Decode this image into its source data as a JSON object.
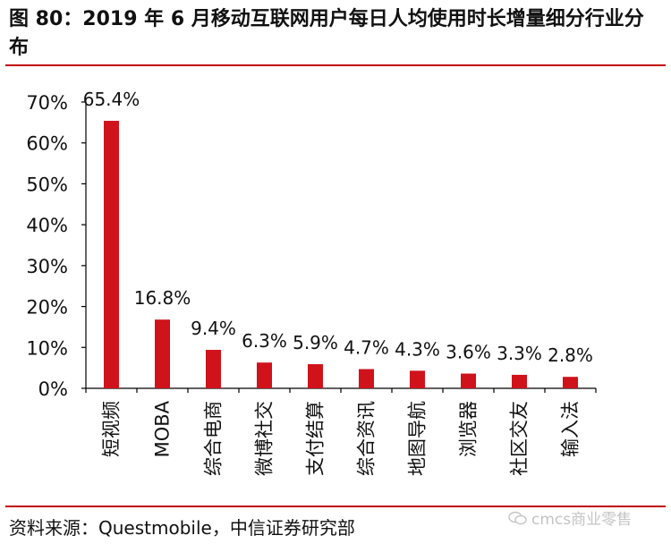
{
  "header": {
    "title": "图 80：2019 年 6 月移动互联网用户每日人均使用时长增量细分行业分布"
  },
  "footer": {
    "source": "资料来源：Questmobile，中信证券研究部",
    "watermark": "cmcs商业零售"
  },
  "colors": {
    "bar": "#d0121b",
    "rule": "#c00000"
  },
  "chart_data": {
    "type": "bar",
    "categories": [
      "短视频",
      "MOBA",
      "综合电商",
      "微博社交",
      "支付结算",
      "综合资讯",
      "地图导航",
      "浏览器",
      "社区交友",
      "输入法"
    ],
    "values": [
      65.4,
      16.8,
      9.4,
      6.3,
      5.9,
      4.7,
      4.3,
      3.6,
      3.3,
      2.8
    ],
    "data_labels": [
      "65.4%",
      "16.8%",
      "9.4%",
      "6.3%",
      "5.9%",
      "4.7%",
      "4.3%",
      "3.6%",
      "3.3%",
      "2.8%"
    ],
    "y_ticks": [
      "0%",
      "10%",
      "20%",
      "30%",
      "40%",
      "50%",
      "60%",
      "70%"
    ],
    "ylim": [
      0,
      70
    ],
    "grid": false,
    "legend": "none"
  }
}
